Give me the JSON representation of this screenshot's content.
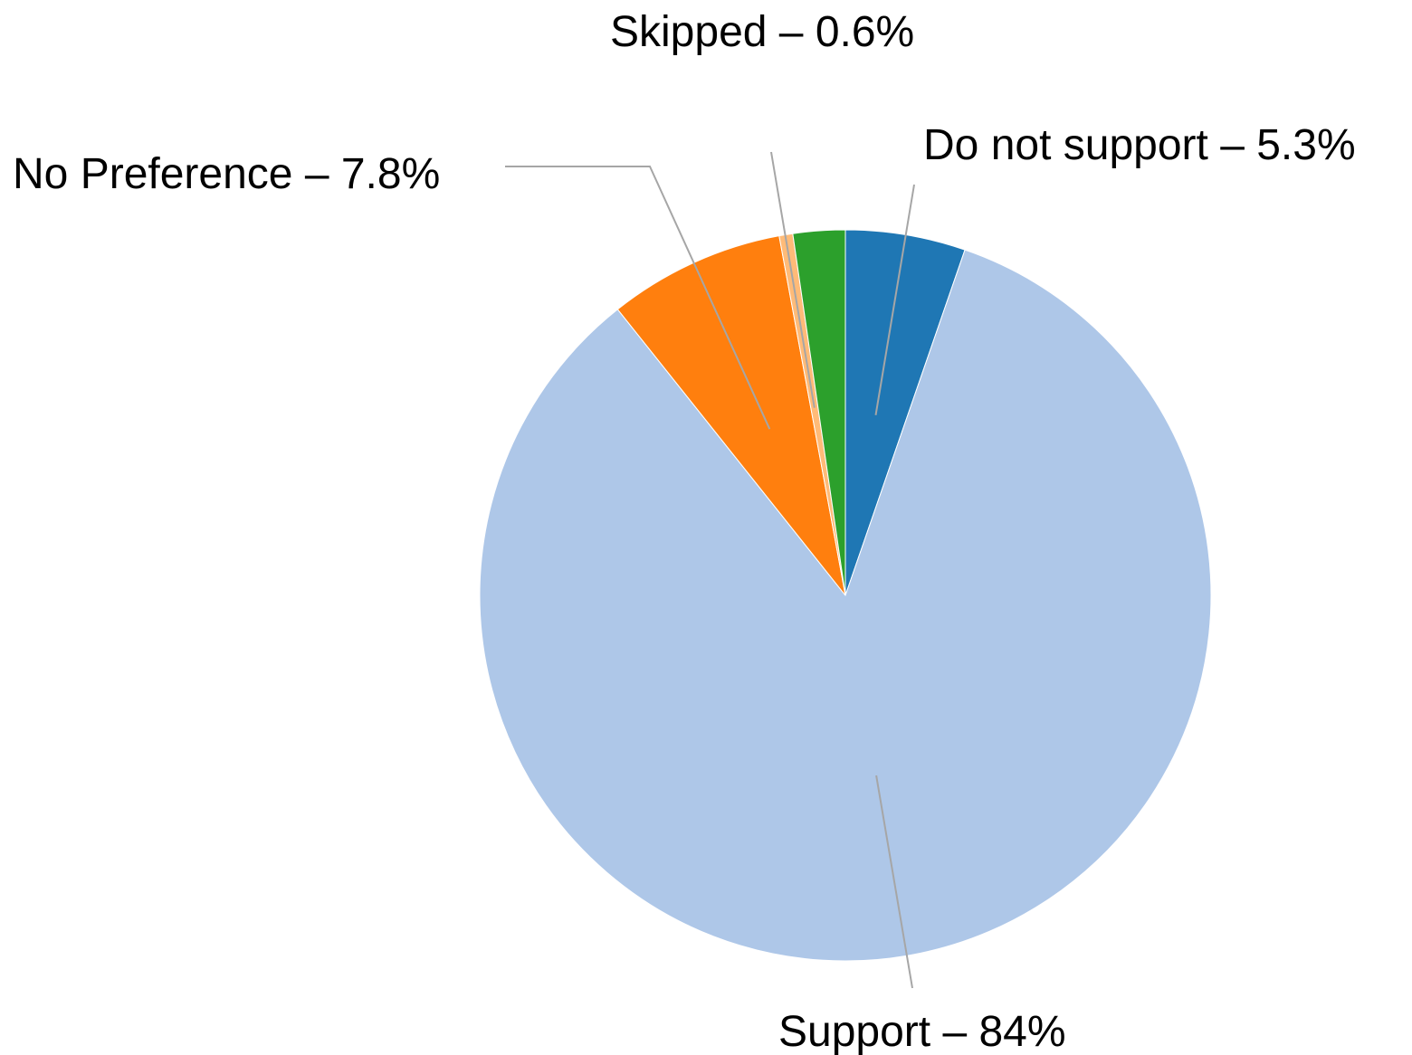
{
  "chart_data": {
    "type": "pie",
    "start_angle_deg": 0,
    "direction": "clockwise",
    "slices": [
      {
        "name": "Do not support",
        "value": 5.3,
        "label": "Do not support – 5.3%",
        "color": "#1f77b4"
      },
      {
        "name": "Support",
        "value": 84,
        "label": "Support – 84%",
        "color": "#aec7e8"
      },
      {
        "name": "No Preference",
        "value": 7.8,
        "label": "No Preference – 7.8%",
        "color": "#ff7f0e"
      },
      {
        "name": "Skipped",
        "value": 0.6,
        "label": "Skipped – 0.6%",
        "color": "#ffbb78"
      },
      {
        "name": "",
        "value": 2.3,
        "label": "",
        "color": "#2ca02c"
      }
    ]
  }
}
